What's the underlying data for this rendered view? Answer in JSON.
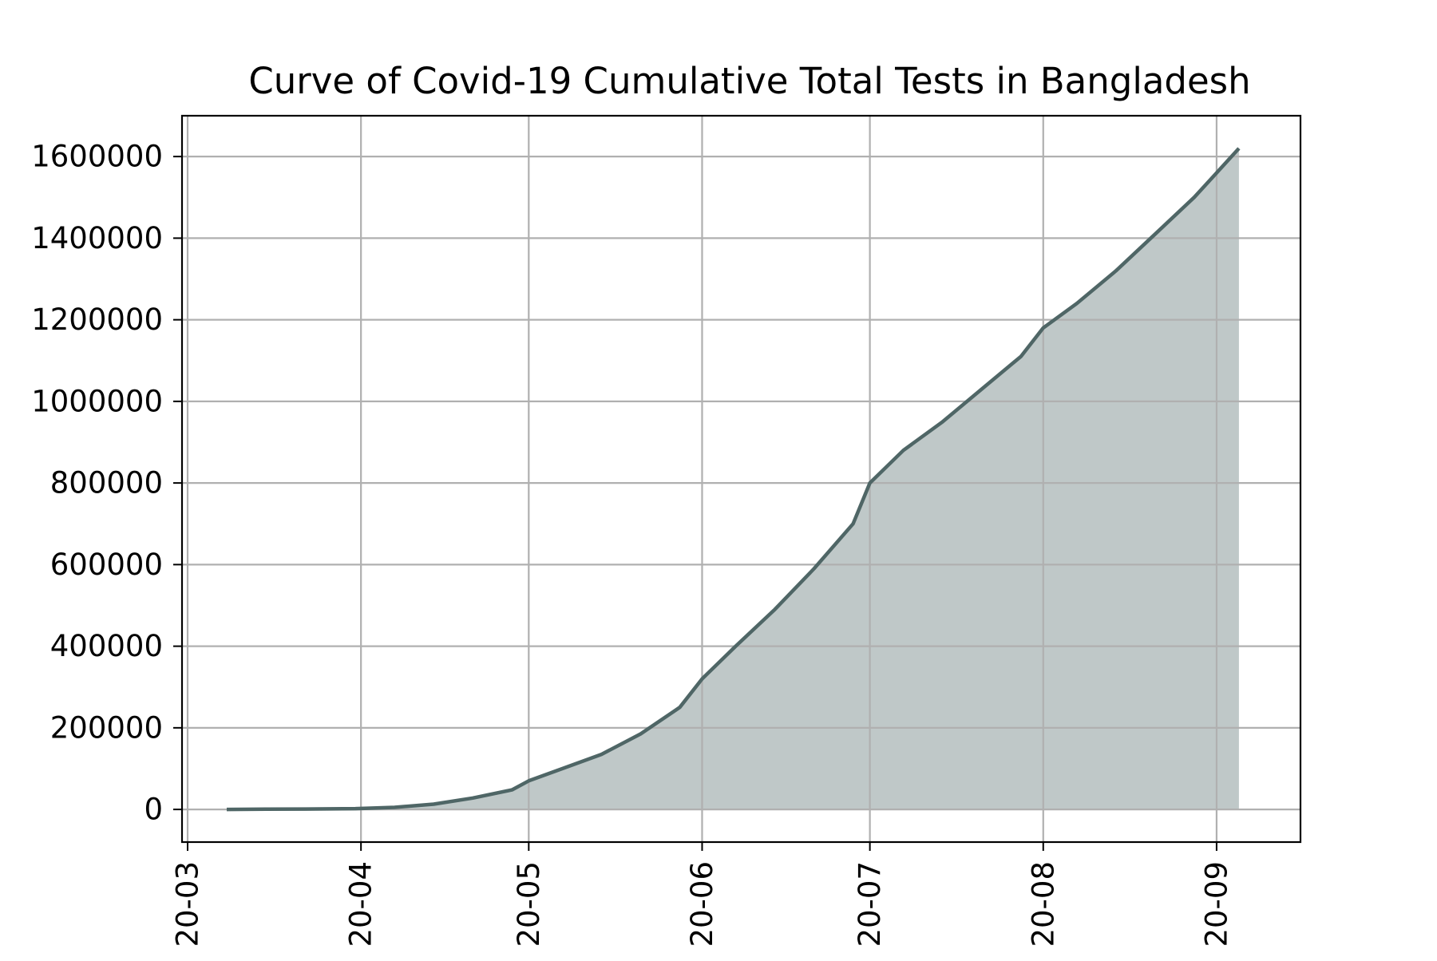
{
  "chart_data": {
    "type": "area",
    "title": "Curve of Covid-19 Cumulative Total Tests in Bangladesh",
    "xlabel": "",
    "ylabel": "",
    "x_ticks": [
      "20-03",
      "20-04",
      "20-05",
      "20-06",
      "20-07",
      "20-08",
      "20-09"
    ],
    "y_ticks": [
      "0",
      "200000",
      "400000",
      "600000",
      "800000",
      "1000000",
      "1200000",
      "1400000",
      "1600000"
    ],
    "xlim": [
      "2020-02-29",
      "2020-09-16"
    ],
    "ylim": [
      -80000,
      1700000
    ],
    "grid": true,
    "colors": {
      "line": "#4f6666",
      "fill": "#bfc8c8",
      "grid": "#b0b0b0",
      "axes": "#000000"
    },
    "series": [
      {
        "x": [
          "2020-03-08",
          "2020-03-15",
          "2020-03-22",
          "2020-03-31",
          "2020-04-07",
          "2020-04-14",
          "2020-04-21",
          "2020-04-28",
          "2020-05-01",
          "2020-05-07",
          "2020-05-14",
          "2020-05-21",
          "2020-05-28",
          "2020-06-01",
          "2020-06-07",
          "2020-06-14",
          "2020-06-21",
          "2020-06-28",
          "2020-07-01",
          "2020-07-07",
          "2020-07-14",
          "2020-07-21",
          "2020-07-28",
          "2020-08-01",
          "2020-08-07",
          "2020-08-14",
          "2020-08-21",
          "2020-08-28",
          "2020-09-01",
          "2020-09-05"
        ],
        "y": [
          0,
          500,
          1000,
          2000,
          5000,
          13000,
          28000,
          48000,
          70000,
          100000,
          135000,
          185000,
          250000,
          320000,
          400000,
          490000,
          590000,
          700000,
          800000,
          880000,
          950000,
          1030000,
          1110000,
          1180000,
          1240000,
          1320000,
          1410000,
          1500000,
          1560000,
          1620000
        ]
      }
    ]
  }
}
